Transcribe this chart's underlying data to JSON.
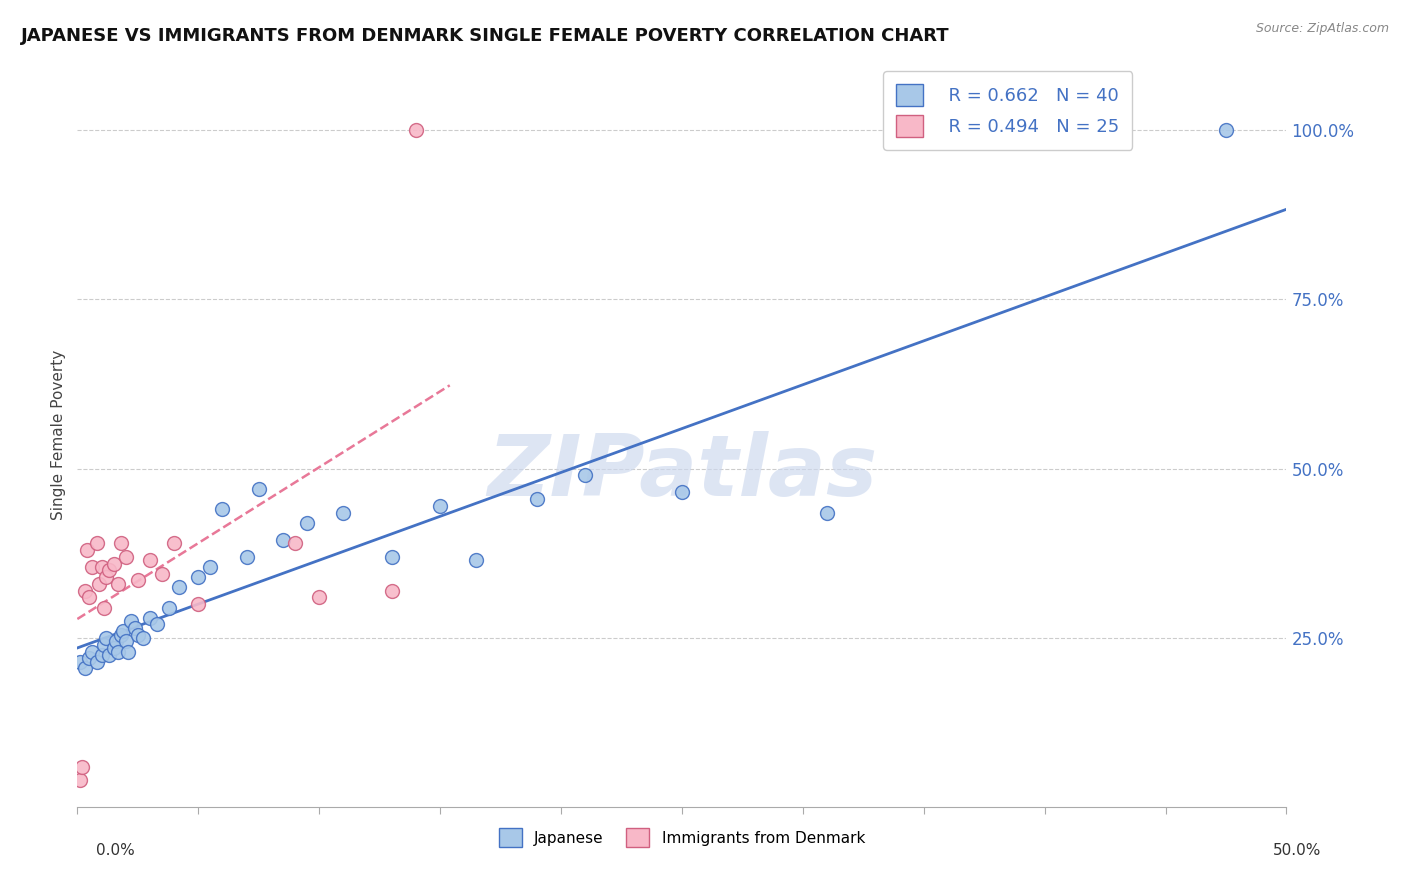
{
  "title": "JAPANESE VS IMMIGRANTS FROM DENMARK SINGLE FEMALE POVERTY CORRELATION CHART",
  "source": "Source: ZipAtlas.com",
  "ylabel": "Single Female Poverty",
  "xlim": [
    0.0,
    0.5
  ],
  "ylim": [
    0.0,
    1.1
  ],
  "yticks": [
    0.25,
    0.5,
    0.75,
    1.0
  ],
  "ytick_labels": [
    "25.0%",
    "50.0%",
    "75.0%",
    "100.0%"
  ],
  "xtick_vals": [
    0.0,
    0.05,
    0.1,
    0.15,
    0.2,
    0.25,
    0.3,
    0.35,
    0.4,
    0.45,
    0.5
  ],
  "japanese_color": "#a8c8e8",
  "denmark_color": "#f8b8c8",
  "japanese_edge_color": "#4472c4",
  "denmark_edge_color": "#d06080",
  "japanese_line_color": "#4472c4",
  "denmark_line_color": "#e87898",
  "legend_r_color": "#4472c4",
  "legend_r_japanese": "R = 0.662",
  "legend_n_japanese": "N = 40",
  "legend_r_denmark": "R = 0.494",
  "legend_n_denmark": "N = 25",
  "japanese_x": [
    0.001,
    0.003,
    0.005,
    0.006,
    0.008,
    0.01,
    0.011,
    0.012,
    0.013,
    0.015,
    0.016,
    0.017,
    0.018,
    0.019,
    0.02,
    0.021,
    0.022,
    0.024,
    0.025,
    0.027,
    0.03,
    0.033,
    0.038,
    0.042,
    0.05,
    0.055,
    0.06,
    0.07,
    0.075,
    0.085,
    0.095,
    0.11,
    0.13,
    0.15,
    0.165,
    0.19,
    0.21,
    0.25,
    0.31,
    0.475
  ],
  "japanese_y": [
    0.215,
    0.205,
    0.22,
    0.23,
    0.215,
    0.225,
    0.24,
    0.25,
    0.225,
    0.235,
    0.245,
    0.23,
    0.255,
    0.26,
    0.245,
    0.23,
    0.275,
    0.265,
    0.255,
    0.25,
    0.28,
    0.27,
    0.295,
    0.325,
    0.34,
    0.355,
    0.44,
    0.37,
    0.47,
    0.395,
    0.42,
    0.435,
    0.37,
    0.445,
    0.365,
    0.455,
    0.49,
    0.465,
    0.435,
    1.0
  ],
  "denmark_x": [
    0.001,
    0.002,
    0.003,
    0.004,
    0.005,
    0.006,
    0.008,
    0.009,
    0.01,
    0.011,
    0.012,
    0.013,
    0.015,
    0.017,
    0.018,
    0.02,
    0.025,
    0.03,
    0.035,
    0.04,
    0.05,
    0.09,
    0.1,
    0.13,
    0.14
  ],
  "denmark_y": [
    0.04,
    0.06,
    0.32,
    0.38,
    0.31,
    0.355,
    0.39,
    0.33,
    0.355,
    0.295,
    0.34,
    0.35,
    0.36,
    0.33,
    0.39,
    0.37,
    0.335,
    0.365,
    0.345,
    0.39,
    0.3,
    0.39,
    0.31,
    0.32,
    1.0
  ],
  "background_color": "#ffffff",
  "grid_color": "#cccccc",
  "watermark_text": "ZIPatlas",
  "watermark_color": "#ccd8ee"
}
